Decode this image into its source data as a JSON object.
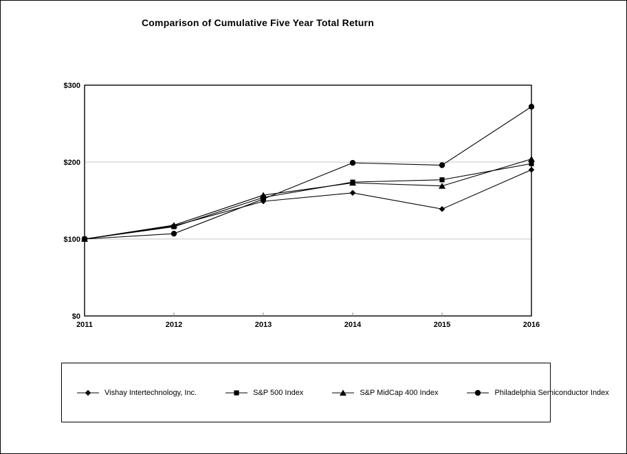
{
  "chart_data": {
    "type": "line",
    "title": "Comparison of Cumulative Five Year Total Return",
    "categories": [
      "2011",
      "2012",
      "2013",
      "2014",
      "2015",
      "2016"
    ],
    "series": [
      {
        "name": "Vishay Intertechnology, Inc.",
        "marker": "diamond",
        "values": [
          100,
          117,
          149,
          160,
          139,
          190
        ]
      },
      {
        "name": "S&P 500 Index",
        "marker": "square",
        "values": [
          100,
          116,
          154,
          174,
          177,
          198
        ]
      },
      {
        "name": "S&P MidCap 400 Index",
        "marker": "triangle",
        "values": [
          100,
          118,
          157,
          173,
          169,
          204
        ]
      },
      {
        "name": "Philadelphia Semiconductor Index",
        "marker": "circle",
        "values": [
          100,
          107,
          152,
          199,
          196,
          272
        ]
      }
    ],
    "y_axis": {
      "tick_labels": [
        "$0",
        "$100",
        "$200",
        "$300"
      ],
      "tick_values": [
        0,
        100,
        200,
        300
      ],
      "min": 0,
      "max": 300,
      "prefix": "$"
    },
    "x_axis": {
      "labels": [
        "2011",
        "2012",
        "2013",
        "2014",
        "2015",
        "2016"
      ]
    },
    "grid": "horizontal",
    "legend_position": "bottom",
    "colors": {
      "series_line": "#000000",
      "marker_fill": "#000000",
      "gridline": "#c6c6c6",
      "plot_border": "#000000",
      "background": "#ffffff"
    }
  }
}
